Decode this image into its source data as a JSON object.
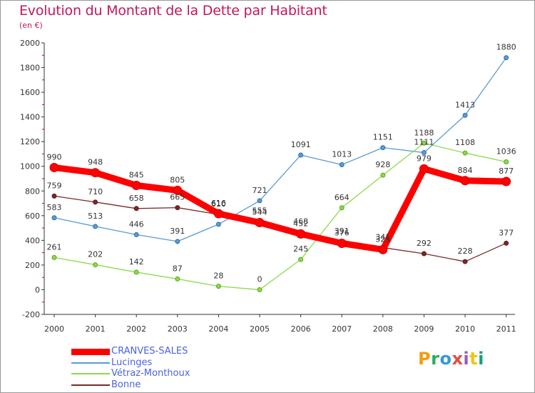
{
  "title": "Evolution du Montant de la Dette par Habitant",
  "unit_label": "(en €)",
  "chart_data": {
    "type": "line",
    "title": "Evolution du Montant de la Dette par Habitant",
    "ylabel": "(en €)",
    "xlabel": "",
    "x": [
      "2000",
      "2001",
      "2002",
      "2003",
      "2004",
      "2005",
      "2006",
      "2007",
      "2008",
      "2009",
      "2010",
      "2011"
    ],
    "ylim": [
      -200,
      2000
    ],
    "yticks": [
      -200,
      0,
      200,
      400,
      600,
      800,
      1000,
      1200,
      1400,
      1600,
      1800,
      2000
    ],
    "grid": false,
    "legend_position": "bottom-left",
    "series": [
      {
        "name": "CRANVES-SALES",
        "color": "#ff0000",
        "values": [
          990,
          948,
          845,
          805,
          616,
          544,
          452,
          376,
          325,
          979,
          884,
          877
        ]
      },
      {
        "name": "Lucinges",
        "color": "#5a9bd5",
        "values": [
          583,
          513,
          446,
          391,
          530,
          721,
          1091,
          1013,
          1151,
          1111,
          1413,
          1880
        ]
      },
      {
        "name": "Vétraz-Monthoux",
        "color": "#8dd94a",
        "values": [
          261,
          202,
          142,
          87,
          28,
          0,
          245,
          664,
          928,
          1188,
          1108,
          1036
        ]
      },
      {
        "name": "Bonne",
        "color": "#7a2a2a",
        "values": [
          759,
          710,
          658,
          665,
          610,
          555,
          468,
          391,
          341,
          292,
          228,
          377
        ]
      }
    ],
    "data_labels": [
      [
        "990",
        "948",
        "845",
        "805",
        "616",
        "544",
        "452",
        "376",
        "325",
        "979",
        "884",
        "877"
      ],
      [
        "583",
        "513",
        "446",
        "391",
        "",
        "721",
        "1091",
        "1013",
        "1151",
        "1111",
        "1413",
        "1880"
      ],
      [
        "261",
        "202",
        "142",
        "87",
        "28",
        "0",
        "245",
        "664",
        "928",
        "1188",
        "1108",
        "1036"
      ],
      [
        "759",
        "710",
        "658",
        "665",
        "610",
        "555",
        "468",
        "391",
        "341",
        "292",
        "228",
        "377"
      ]
    ]
  },
  "logo": {
    "text": "Proxiti",
    "colors": [
      "#f39c12",
      "#27ae60",
      "#3498db",
      "#e74c3c",
      "#9b59b6",
      "#f1c40f",
      "#16a085"
    ]
  }
}
